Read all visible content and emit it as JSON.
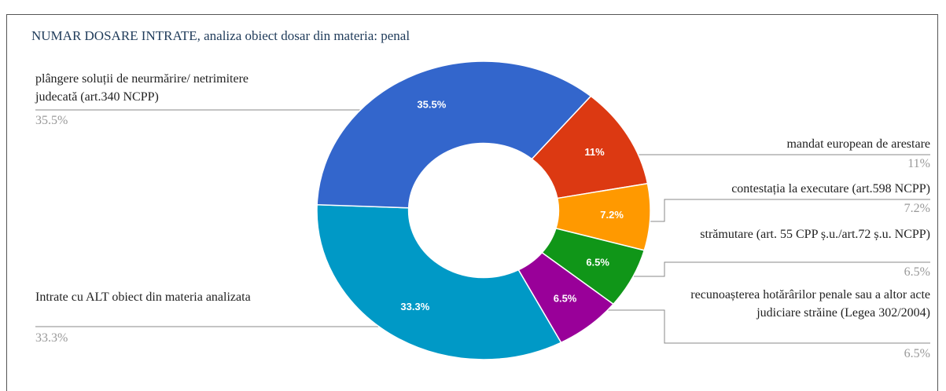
{
  "chart_data": {
    "type": "pie",
    "donut": true,
    "title": "NUMAR DOSARE INTRATE, analiza obiect dosar din materia: penal",
    "categories": [
      "mandat european de arestare",
      "contestația la executare (art.598 NCPP)",
      "strămutare (art. 55 CPP ș.u./art.72 ș.u. NCPP)",
      "recunoașterea hotărârilor penale sau a altor acte judiciare străine (Legea 302/2004)",
      "Intrate cu ALT obiect din materia analizata",
      "plângere soluții de neurmărire/ netrimitere judecată (art.340 NCPP)"
    ],
    "values": [
      11,
      7.2,
      6.5,
      6.5,
      33.3,
      35.5
    ],
    "value_labels": [
      "11%",
      "7.2%",
      "6.5%",
      "6.5%",
      "33.3%",
      "35.5%"
    ],
    "colors": [
      "#dc3912",
      "#ff9900",
      "#109618",
      "#990099",
      "#0099c6",
      "#3366cc"
    ]
  }
}
